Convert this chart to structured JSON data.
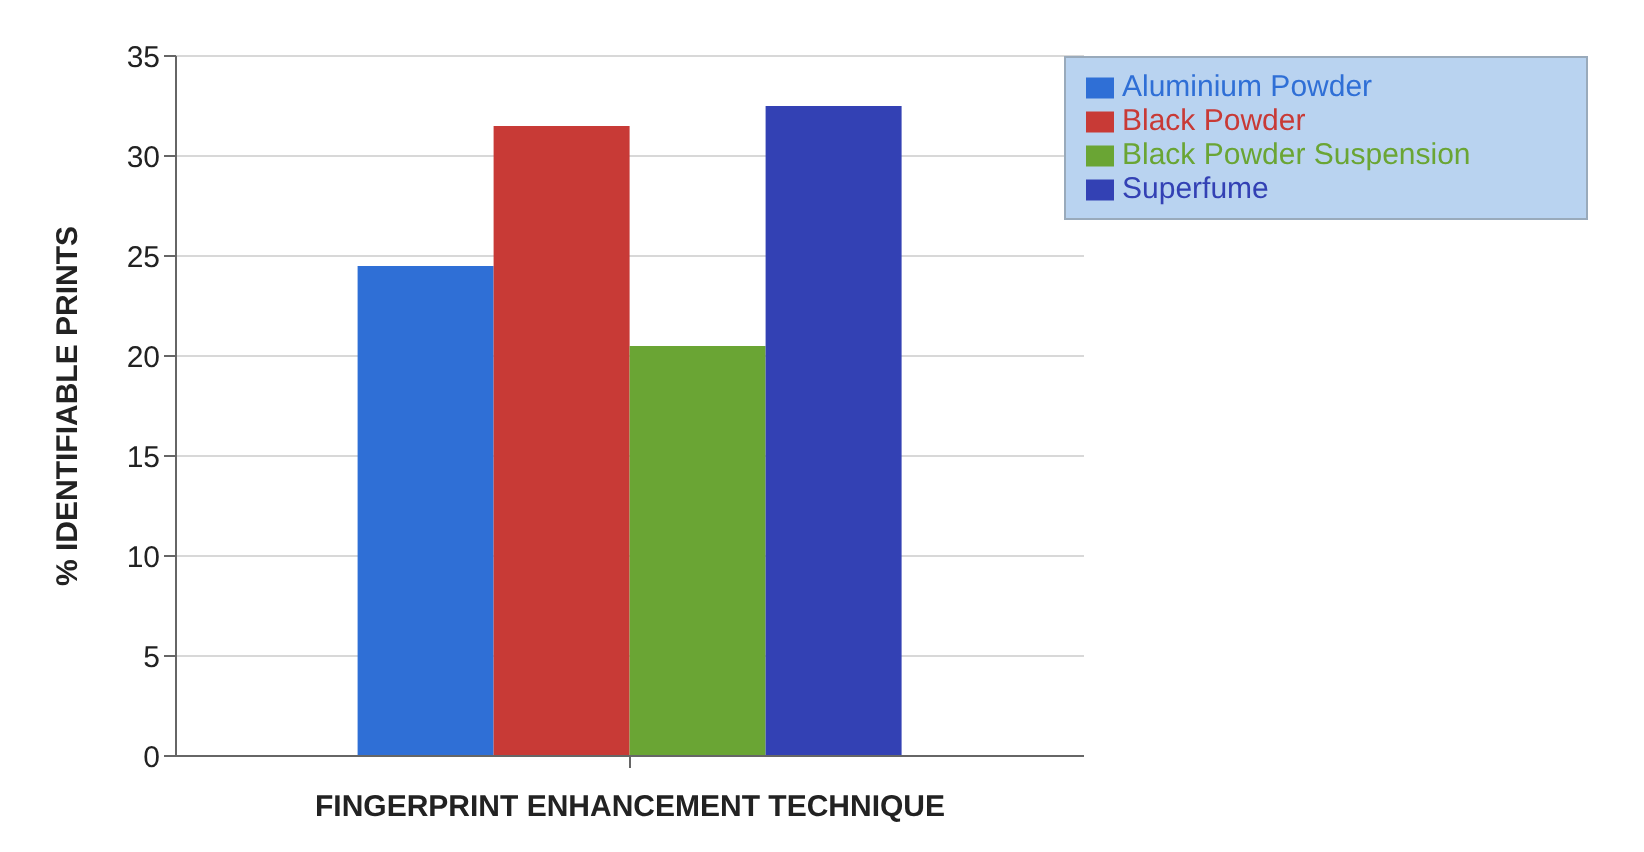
{
  "chart_data": {
    "type": "bar",
    "xlabel": "FINGERPRINT ENHANCEMENT TECHNIQUE",
    "ylabel": "% IDENTIFIABLE PRINTS",
    "categories": [
      null
    ],
    "series": [
      {
        "name": "Aluminium Powder",
        "color": "#2f6fd6",
        "values": [
          24.5
        ]
      },
      {
        "name": "Black Powder",
        "color": "#c83a36",
        "values": [
          31.5
        ]
      },
      {
        "name": "Black Powder Suspension",
        "color": "#6aa534",
        "values": [
          20.5
        ]
      },
      {
        "name": "Superfume",
        "color": "#3341b4",
        "values": [
          32.5
        ]
      }
    ],
    "ylim": [
      0,
      35
    ],
    "yticks": [
      0,
      5,
      10,
      15,
      20,
      25,
      30,
      35
    ],
    "grid": "y",
    "legend": "top right"
  }
}
